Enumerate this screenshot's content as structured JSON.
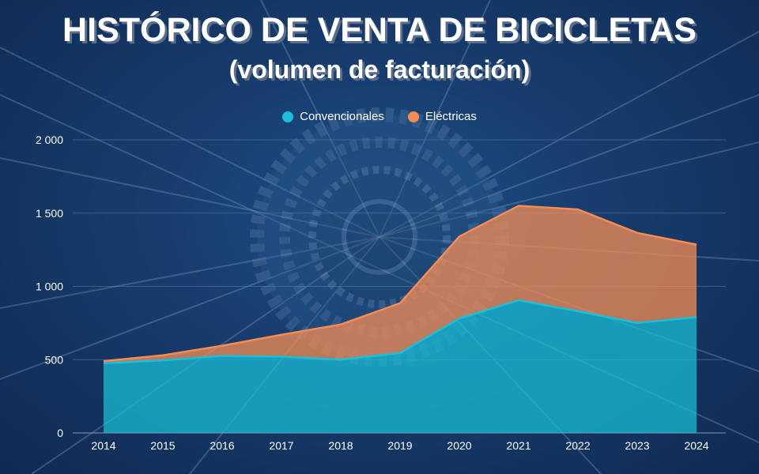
{
  "chart_data": {
    "type": "area",
    "stacked": true,
    "title": "HISTÓRICO DE VENTA DE BICICLETAS",
    "subtitle": "(volumen de facturación)",
    "categories": [
      "2014",
      "2015",
      "2016",
      "2017",
      "2018",
      "2019",
      "2020",
      "2021",
      "2022",
      "2023",
      "2024"
    ],
    "series": [
      {
        "name": "Convencionales",
        "color": "#19c0d8",
        "values": [
          475,
          495,
          525,
          520,
          500,
          545,
          780,
          905,
          830,
          750,
          790
        ]
      },
      {
        "name": "Eléctricas",
        "color": "#f58c54",
        "values": [
          15,
          35,
          70,
          150,
          240,
          340,
          560,
          645,
          695,
          615,
          495
        ]
      }
    ],
    "yticks": [
      {
        "value": 0,
        "label": "0"
      },
      {
        "value": 500,
        "label": "500"
      },
      {
        "value": 1000,
        "label": "1 000"
      },
      {
        "value": 1500,
        "label": "1 500"
      },
      {
        "value": 2000,
        "label": "2 000"
      }
    ],
    "ylim": [
      0,
      2000
    ],
    "grid": true,
    "legend_position": "top-center",
    "xlabel": "",
    "ylabel": ""
  }
}
